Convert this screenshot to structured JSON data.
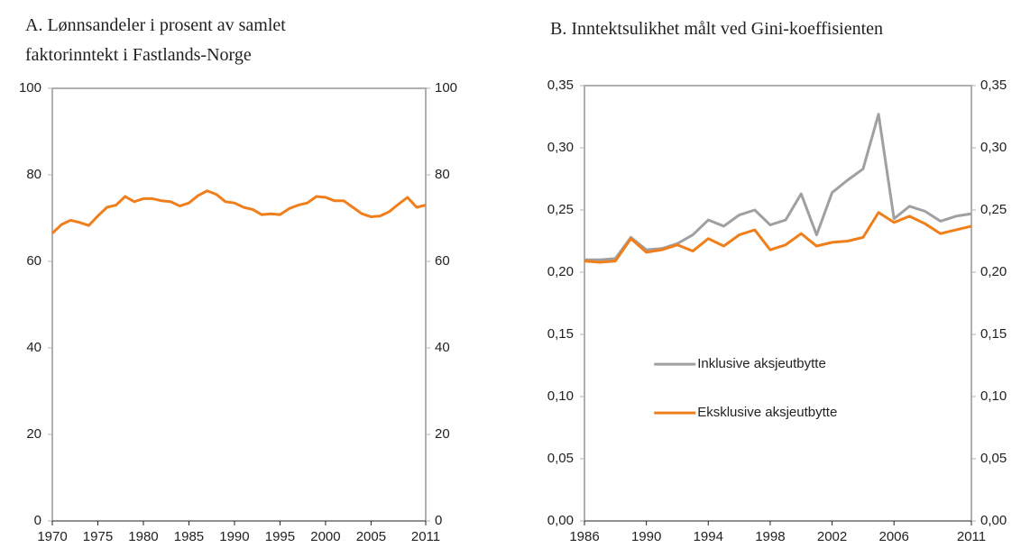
{
  "chart_data": [
    {
      "type": "line",
      "title": "A.  Lønnsandeler i prosent av samlet faktorinntekt i Fastlands-Norge",
      "x": [
        1970,
        1971,
        1972,
        1973,
        1974,
        1975,
        1976,
        1977,
        1978,
        1979,
        1980,
        1981,
        1982,
        1983,
        1984,
        1985,
        1986,
        1987,
        1988,
        1989,
        1990,
        1991,
        1992,
        1993,
        1994,
        1995,
        1996,
        1997,
        1998,
        1999,
        2000,
        2001,
        2002,
        2003,
        2004,
        2005,
        2006,
        2007,
        2008,
        2009,
        2010,
        2011
      ],
      "values": [
        66.5,
        68.5,
        69.5,
        69,
        68.3,
        70.5,
        72.5,
        73,
        75,
        73.8,
        74.5,
        74.5,
        74,
        73.8,
        72.8,
        73.5,
        75.2,
        76.3,
        75.5,
        73.8,
        73.5,
        72.5,
        72,
        70.8,
        71,
        70.8,
        72.2,
        73,
        73.5,
        75,
        74.8,
        74,
        74,
        72.5,
        71,
        70.3,
        70.5,
        71.5,
        73.2,
        74.8,
        72.5,
        73
      ],
      "color": "#f07f1b",
      "xlim": [
        1970,
        2011
      ],
      "xticks": [
        1970,
        1975,
        1980,
        1985,
        1990,
        1995,
        2000,
        2005,
        2011
      ],
      "ylim": [
        0,
        100
      ],
      "yticks": [
        0,
        20,
        40,
        60,
        80,
        100
      ],
      "y2lim": [
        0,
        100
      ],
      "y2ticks": [
        0,
        20,
        40,
        60,
        80,
        100
      ]
    },
    {
      "type": "line",
      "title": "B.  Inntektsulikhet målt ved Gini-koeffisienten",
      "x": [
        1986,
        1987,
        1988,
        1989,
        1990,
        1991,
        1992,
        1993,
        1994,
        1995,
        1996,
        1997,
        1998,
        1999,
        2000,
        2001,
        2002,
        2003,
        2004,
        2005,
        2006,
        2007,
        2008,
        2009,
        2010,
        2011
      ],
      "series": [
        {
          "name": "Inklusive aksjeutbytte",
          "color": "#a0a0a0",
          "values": [
            0.21,
            0.21,
            0.211,
            0.228,
            0.218,
            0.219,
            0.223,
            0.23,
            0.242,
            0.237,
            0.246,
            0.25,
            0.238,
            0.242,
            0.263,
            0.23,
            0.264,
            0.274,
            0.283,
            0.327,
            0.243,
            0.253,
            0.249,
            0.241,
            0.245,
            0.247
          ]
        },
        {
          "name": "Eksklusive aksjeutbytte",
          "color": "#f07f1b",
          "values": [
            0.209,
            0.208,
            0.209,
            0.227,
            0.216,
            0.218,
            0.222,
            0.217,
            0.227,
            0.221,
            0.23,
            0.234,
            0.218,
            0.222,
            0.231,
            0.221,
            0.224,
            0.225,
            0.228,
            0.248,
            0.24,
            0.245,
            0.239,
            0.231,
            0.234,
            0.237
          ]
        }
      ],
      "legend": "center",
      "xlim": [
        1986,
        2011
      ],
      "xticks": [
        1986,
        1990,
        1994,
        1998,
        2002,
        2006,
        2011
      ],
      "ylim": [
        0,
        0.35
      ],
      "yticks": [
        {
          "value": 0,
          "label": "0,00"
        },
        {
          "value": 0.05,
          "label": "0,05"
        },
        {
          "value": 0.1,
          "label": "0,10"
        },
        {
          "value": 0.15,
          "label": "0,15"
        },
        {
          "value": 0.2,
          "label": "0,20"
        },
        {
          "value": 0.25,
          "label": "0,25"
        },
        {
          "value": 0.3,
          "label": "0,30"
        },
        {
          "value": 0.35,
          "label": "0,35"
        }
      ],
      "y2lim": [
        0,
        0.35
      ],
      "y2ticks": [
        {
          "value": 0,
          "label": "0,00"
        },
        {
          "value": 0.05,
          "label": "0,05"
        },
        {
          "value": 0.1,
          "label": "0,10"
        },
        {
          "value": 0.15,
          "label": "0,15"
        },
        {
          "value": 0.2,
          "label": "0,20"
        },
        {
          "value": 0.25,
          "label": "0,25"
        },
        {
          "value": 0.3,
          "label": "0,30"
        },
        {
          "value": 0.35,
          "label": "0,35"
        }
      ]
    }
  ]
}
